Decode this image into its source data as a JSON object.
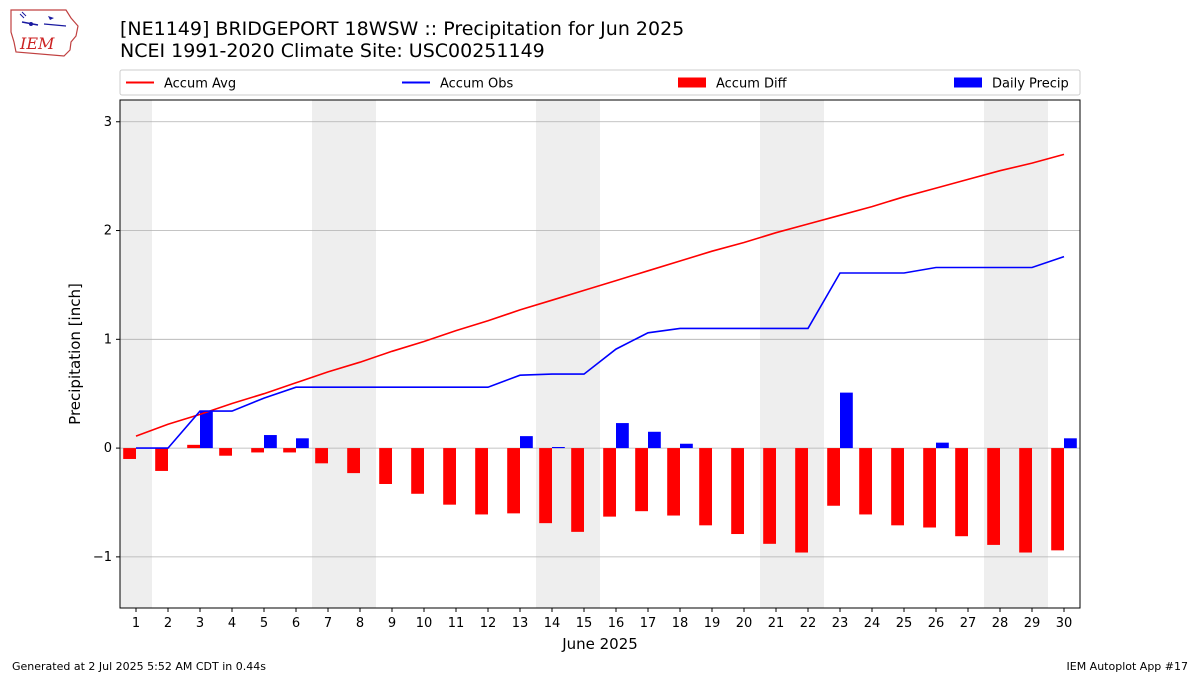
{
  "header": {
    "title_line1": "[NE1149] BRIDGEPORT 18WSW :: Precipitation for Jun 2025",
    "title_line2": "NCEI 1991-2020 Climate Site: USC00251149"
  },
  "logo": {
    "text": "IEM",
    "icon": "iowa-state-outline-logo"
  },
  "footer": {
    "left": "Generated at 2 Jul 2025 5:52 AM CDT in 0.44s",
    "right": "IEM Autoplot App #17"
  },
  "colors": {
    "accum_avg": "#ff0000",
    "accum_obs": "#0000ff",
    "accum_diff": "#ff0000",
    "daily_precip": "#0000ff",
    "weekend_shade": "#eeeeee",
    "grid": "#b0b0b0"
  },
  "chart_data": {
    "type": "bar",
    "xlabel": "June 2025",
    "ylabel": "Precipitation [inch]",
    "ylim": [
      -1.47,
      3.2
    ],
    "y_ticks": [
      3,
      2,
      1,
      0,
      -1
    ],
    "y_tick_labels": [
      "3",
      "2",
      "1",
      "0",
      "−1"
    ],
    "grid": "horizontal",
    "legend_position": "top",
    "days": [
      1,
      2,
      3,
      4,
      5,
      6,
      7,
      8,
      9,
      10,
      11,
      12,
      13,
      14,
      15,
      16,
      17,
      18,
      19,
      20,
      21,
      22,
      23,
      24,
      25,
      26,
      27,
      28,
      29,
      30
    ],
    "weekend_days": [
      1,
      7,
      8,
      14,
      15,
      21,
      22,
      28,
      29
    ],
    "series": [
      {
        "name": "Accum Avg",
        "kind": "line",
        "values": [
          0.11,
          0.22,
          0.31,
          0.41,
          0.5,
          0.6,
          0.7,
          0.79,
          0.89,
          0.98,
          1.08,
          1.17,
          1.27,
          1.36,
          1.45,
          1.54,
          1.63,
          1.72,
          1.81,
          1.89,
          1.98,
          2.06,
          2.14,
          2.22,
          2.31,
          2.39,
          2.47,
          2.55,
          2.62,
          2.7
        ]
      },
      {
        "name": "Accum Obs",
        "kind": "line",
        "values": [
          0.0,
          0.0,
          0.34,
          0.34,
          0.46,
          0.56,
          0.56,
          0.56,
          0.56,
          0.56,
          0.56,
          0.56,
          0.67,
          0.68,
          0.68,
          0.91,
          1.06,
          1.1,
          1.1,
          1.1,
          1.1,
          1.1,
          1.61,
          1.61,
          1.61,
          1.66,
          1.66,
          1.66,
          1.66,
          1.76
        ]
      },
      {
        "name": "Accum Diff",
        "kind": "bar",
        "values": [
          -0.1,
          -0.21,
          0.03,
          -0.07,
          -0.04,
          -0.04,
          -0.14,
          -0.23,
          -0.33,
          -0.42,
          -0.52,
          -0.61,
          -0.6,
          -0.69,
          -0.77,
          -0.63,
          -0.58,
          -0.62,
          -0.71,
          -0.79,
          -0.88,
          -0.96,
          -0.53,
          -0.61,
          -0.71,
          -0.73,
          -0.81,
          -0.89,
          -0.96,
          -0.94
        ]
      },
      {
        "name": "Daily Precip",
        "kind": "bar",
        "values": [
          0.0,
          0.0,
          0.34,
          0.0,
          0.12,
          0.09,
          0.0,
          0.0,
          0.0,
          0.0,
          0.0,
          0.0,
          0.11,
          0.01,
          0.0,
          0.23,
          0.15,
          0.04,
          0.0,
          0.0,
          0.0,
          0.0,
          0.51,
          0.0,
          0.0,
          0.05,
          0.0,
          0.0,
          0.0,
          0.09
        ]
      }
    ]
  }
}
